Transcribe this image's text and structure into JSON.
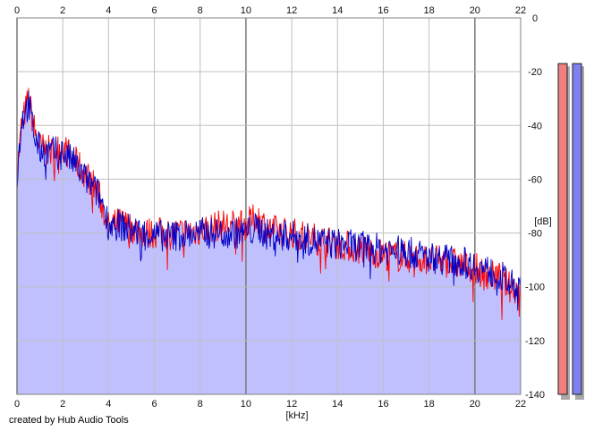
{
  "credit": "created by Hub Audio Tools",
  "chart_data": {
    "type": "area",
    "xlabel": "[kHz]",
    "ylabel": "[dB]",
    "xlim": [
      0,
      22
    ],
    "ylim": [
      -140,
      0
    ],
    "x_ticks": [
      "0",
      "2",
      "4",
      "6",
      "8",
      "10",
      "12",
      "14",
      "16",
      "18",
      "20",
      "22"
    ],
    "y_ticks": [
      "0",
      "-20",
      "-40",
      "-60",
      "-80",
      "-100",
      "-120",
      "-140"
    ],
    "grid": true,
    "colors": {
      "fill": "#c0c0ff",
      "left": "#ff0000",
      "right": "#0000c8",
      "grid": "#c0c0c0",
      "grid_major": "#808080",
      "meter_left": "#f08080",
      "meter_right": "#8080f0"
    },
    "series": [
      {
        "color": "#ff0000",
        "x": [
          0,
          0.2,
          0.5,
          0.8,
          1,
          1.5,
          2,
          2.5,
          3,
          3.5,
          3.8,
          4,
          4.5,
          5,
          5.5,
          6,
          7,
          8,
          9,
          10,
          10.5,
          11,
          12,
          13,
          14,
          15,
          16,
          17,
          18,
          19,
          20,
          20.5,
          21,
          21.5,
          22
        ],
        "y": [
          -58,
          -40,
          -30,
          -43,
          -48,
          -50,
          -48,
          -53,
          -58,
          -64,
          -72,
          -78,
          -76,
          -78,
          -80,
          -80,
          -80,
          -79,
          -77,
          -77,
          -74,
          -79,
          -80,
          -82,
          -84,
          -86,
          -88,
          -89,
          -90,
          -91,
          -93,
          -96,
          -96,
          -100,
          -101
        ]
      },
      {
        "color": "#0000c8",
        "x": [
          0,
          0.2,
          0.5,
          0.8,
          1,
          1.5,
          2,
          2.5,
          3,
          3.5,
          3.8,
          4,
          4.5,
          5,
          5.5,
          6,
          7,
          8,
          9,
          10,
          10.5,
          11,
          12,
          13,
          14,
          15,
          16,
          17,
          18,
          19,
          20,
          20.5,
          21,
          21.5,
          22
        ],
        "y": [
          -60,
          -38,
          -32,
          -45,
          -49,
          -50,
          -50,
          -54,
          -60,
          -65,
          -70,
          -77,
          -77,
          -79,
          -80,
          -81,
          -81,
          -80,
          -80,
          -80,
          -78,
          -81,
          -81,
          -83,
          -84,
          -85,
          -86,
          -87,
          -89,
          -90,
          -92,
          -94,
          -95,
          -99,
          -101
        ]
      }
    ],
    "meters": [
      {
        "channel": "L",
        "color": "#f08080",
        "top_db": -17
      },
      {
        "channel": "R",
        "color": "#8080f0",
        "top_db": -17
      }
    ]
  }
}
